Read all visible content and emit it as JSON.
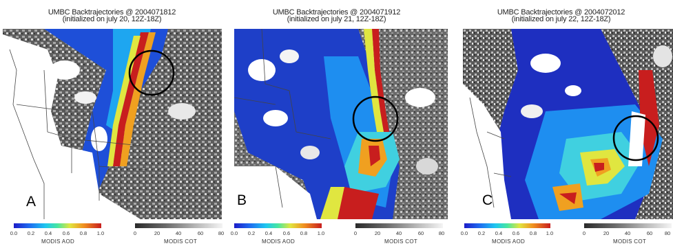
{
  "panels": [
    {
      "title_line1": "UMBC Backtrajectories @ 2004071812",
      "title_line2": "(initialized on july 20, 12Z-18Z)",
      "letter": "A",
      "aod_label": "MODIS AOD",
      "cot_label": "MODIS COT",
      "aod_ticks": [
        "0.0",
        "0.2",
        "0.4",
        "0.6",
        "0.8",
        "1.0"
      ],
      "cot_ticks": [
        "0",
        "20",
        "40",
        "60",
        "80"
      ]
    },
    {
      "title_line1": "UMBC Backtrajectories @ 2004071912",
      "title_line2": "(initialized on july 21, 12Z-18Z)",
      "letter": "B",
      "aod_label": "MODIS AOD",
      "cot_label": "MODIS COT",
      "aod_ticks": [
        "0.0",
        "0.2",
        "0.4",
        "0.6",
        "0.8",
        "1.0"
      ],
      "cot_ticks": [
        "0",
        "20",
        "40",
        "60",
        "80"
      ]
    },
    {
      "title_line1": "UMBC Backtrajectories @ 2004072012",
      "title_line2": "(initialized on july 22, 12Z-18Z)",
      "letter": "C",
      "aod_label": "MODIS AOD",
      "cot_label": "MODIS COT",
      "aod_ticks": [
        "0.0",
        "0.2",
        "0.4",
        "0.6",
        "0.8",
        "1.0"
      ],
      "cot_ticks": [
        "0",
        "20",
        "40",
        "60",
        "80"
      ]
    }
  ],
  "colors": {
    "aod_low": "#1c1cc8",
    "aod_mid": "#1ec6f0",
    "aod_high": "#c81e1e",
    "cot_low": "#2a2a2a",
    "cot_high": "#f4f4f4",
    "circle": "#000000"
  }
}
